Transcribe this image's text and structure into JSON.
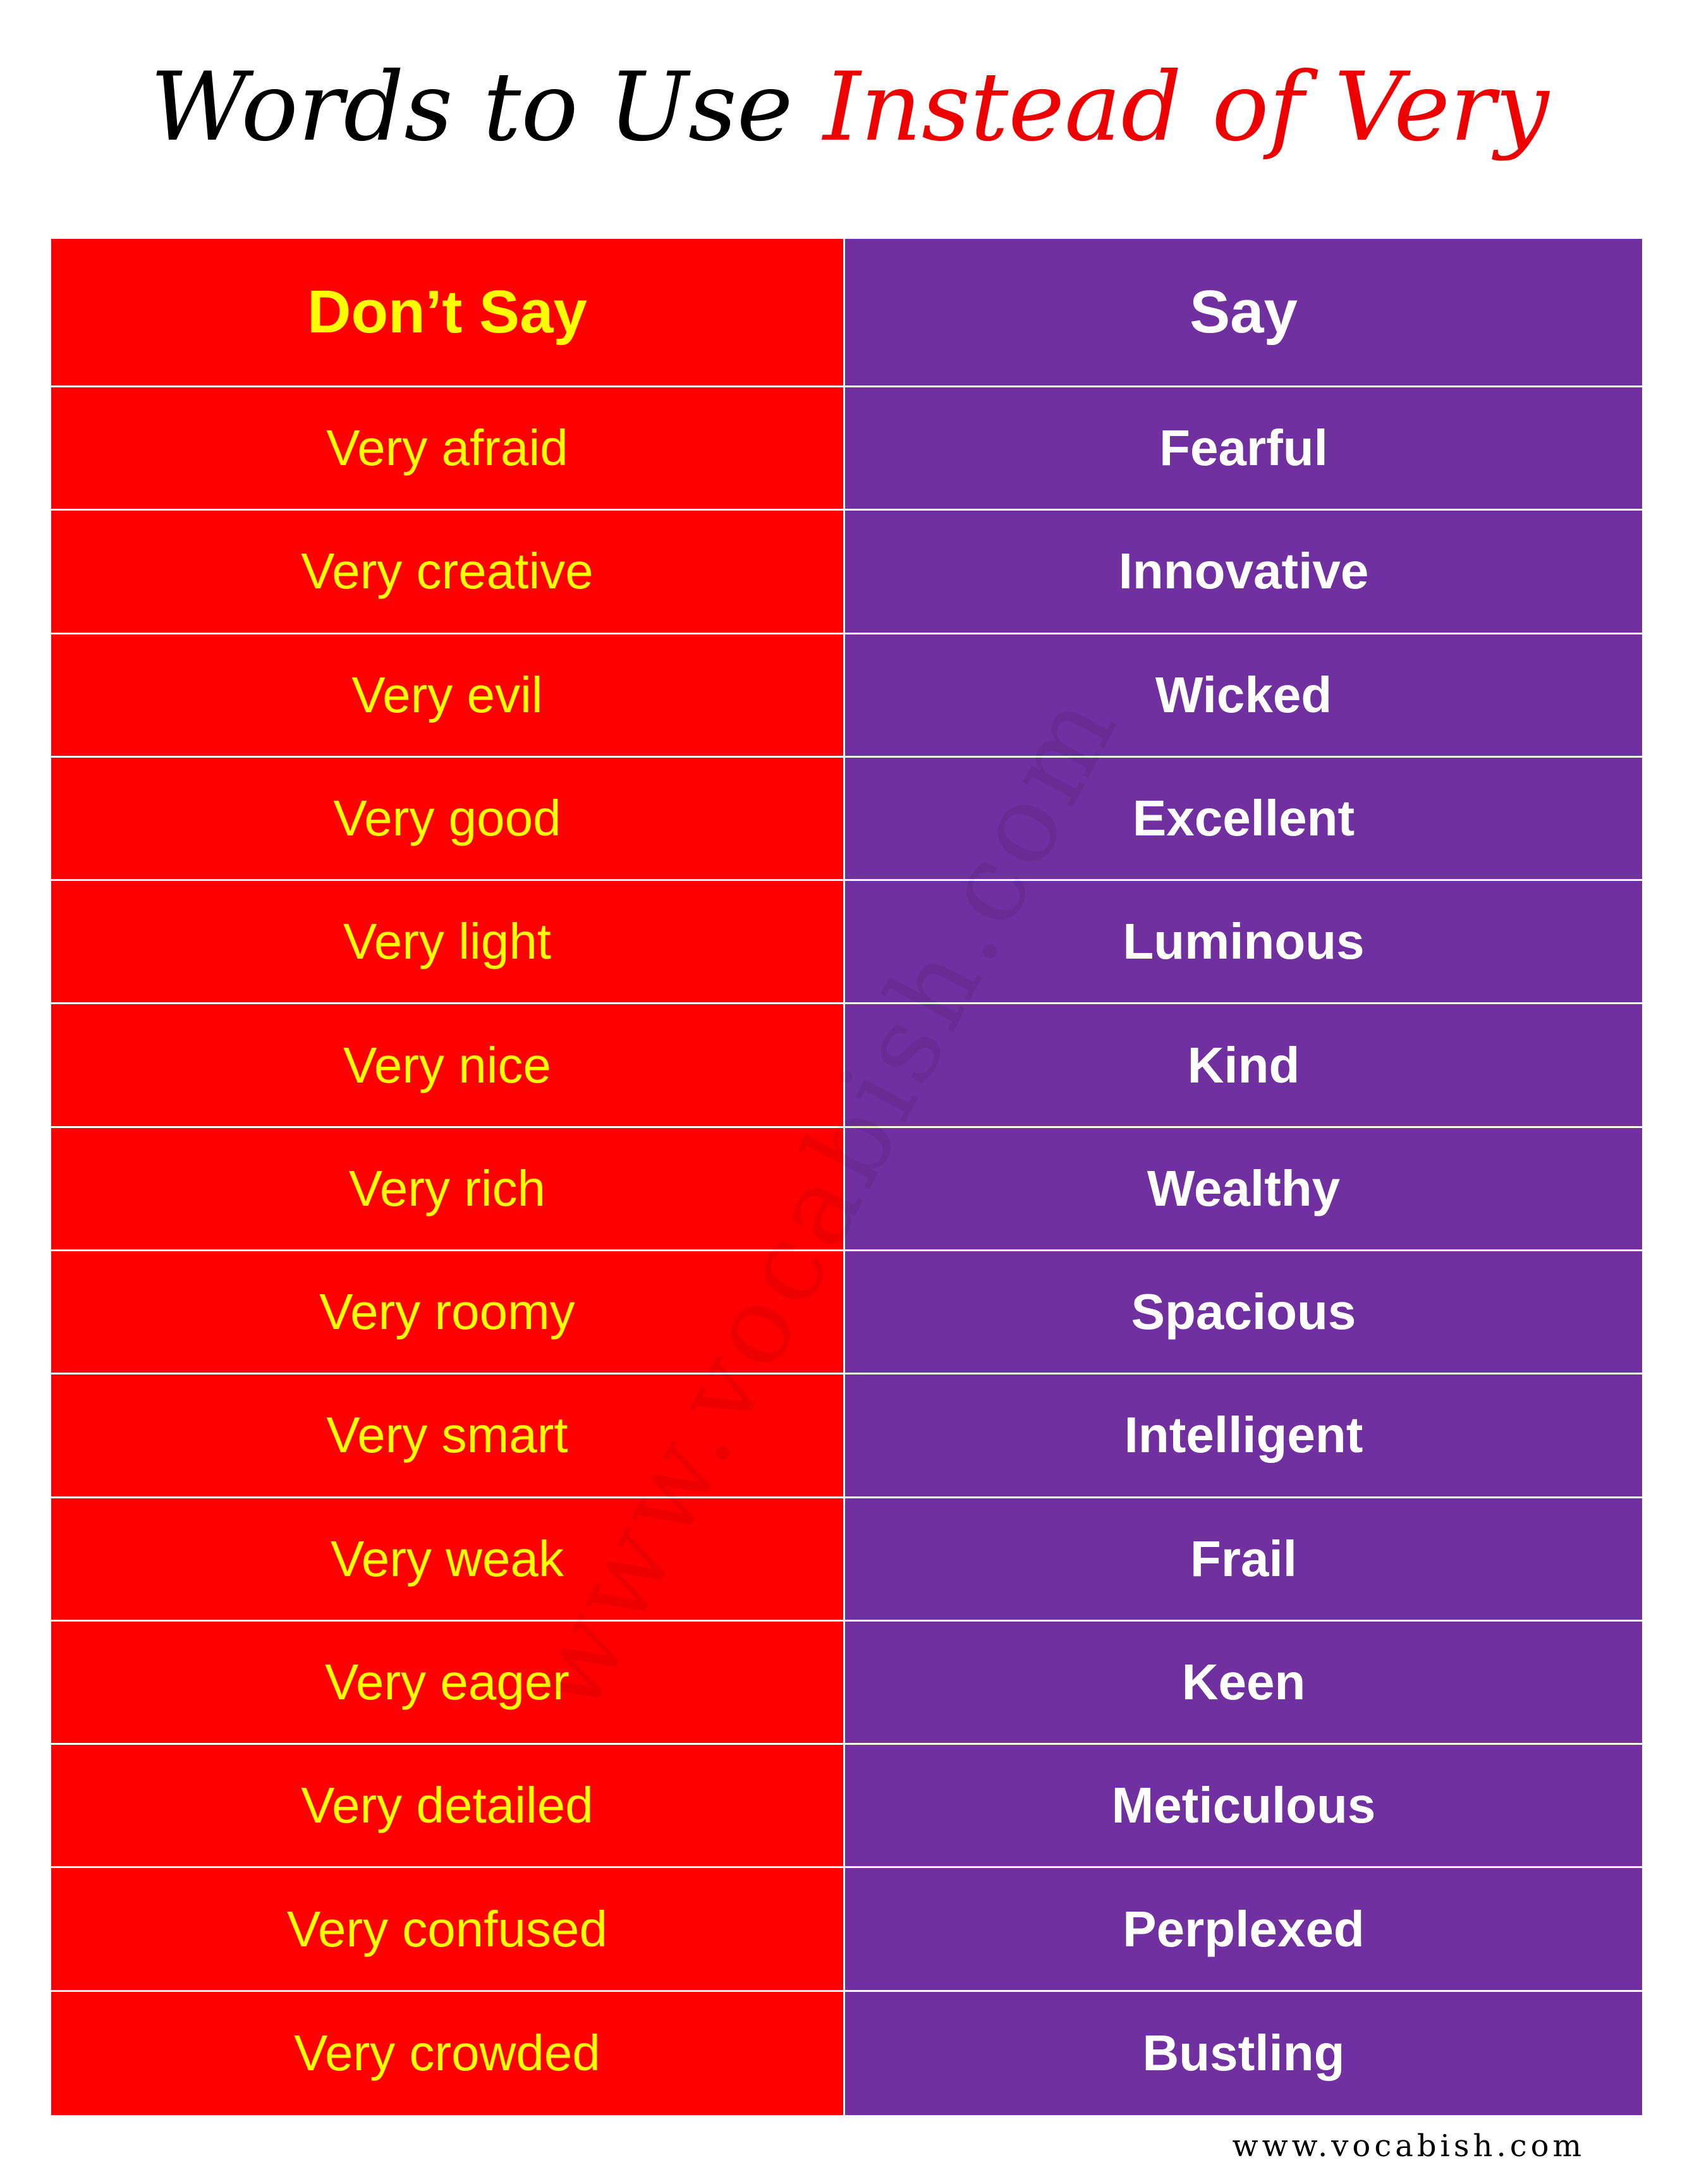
{
  "title": {
    "part1": "Words to Use",
    "part2": "Instead of Very"
  },
  "table": {
    "header": [
      "Don’t Say",
      "Say"
    ],
    "rows": [
      [
        "Very afraid",
        "Fearful"
      ],
      [
        "Very creative",
        "Innovative"
      ],
      [
        "Very evil",
        "Wicked"
      ],
      [
        "Very good",
        "Excellent"
      ],
      [
        "Very light",
        "Luminous"
      ],
      [
        "Very nice",
        "Kind"
      ],
      [
        "Very rich",
        "Wealthy"
      ],
      [
        "Very roomy",
        "Spacious"
      ],
      [
        "Very smart",
        "Intelligent"
      ],
      [
        "Very weak",
        "Frail"
      ],
      [
        "Very eager",
        "Keen"
      ],
      [
        "Very detailed",
        "Meticulous"
      ],
      [
        "Very confused",
        "Perplexed"
      ],
      [
        "Very crowded",
        "Bustling"
      ]
    ]
  },
  "watermark": "www.vocabish.com",
  "footer": "www.vocabish.com"
}
